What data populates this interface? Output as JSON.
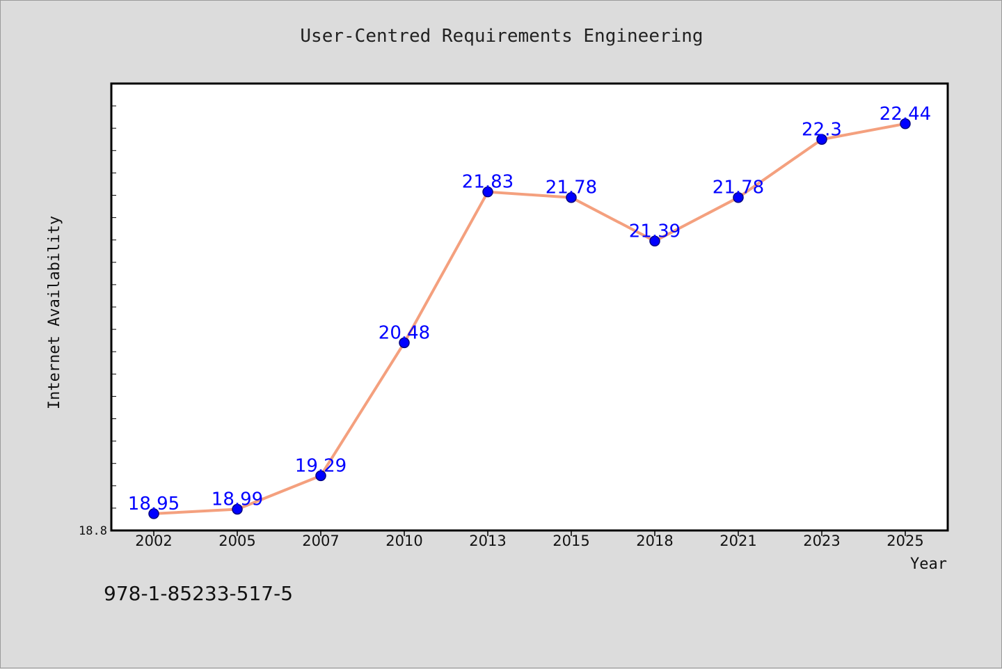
{
  "chart_data": {
    "type": "line",
    "title": "User-Centred Requirements Engineering",
    "xlabel": "Year",
    "ylabel": "Internet Availability",
    "categories": [
      "2002",
      "2005",
      "2007",
      "2010",
      "2013",
      "2015",
      "2018",
      "2021",
      "2023",
      "2025"
    ],
    "series": [
      {
        "values": [
          18.95,
          18.99,
          19.29,
          20.48,
          21.83,
          21.78,
          21.39,
          21.78,
          22.3,
          22.44
        ]
      }
    ],
    "data_labels": [
      "18.95",
      "18.99",
      "19.29",
      "20.48",
      "21.83",
      "21.78",
      "21.39",
      "21.78",
      "22.3",
      "22.44"
    ],
    "ylim": [
      18.8,
      22.8
    ],
    "y_tick_labels": [
      "18.8"
    ],
    "grid": false,
    "colors": {
      "line": "#f4a07e",
      "marker": "#0000ff",
      "marker_edge": "#000080",
      "label": "#0000ff",
      "plot_bg": "#ffffff",
      "page_bg": "#dcdcdc"
    }
  },
  "footer_text": "978-1-85233-517-5"
}
